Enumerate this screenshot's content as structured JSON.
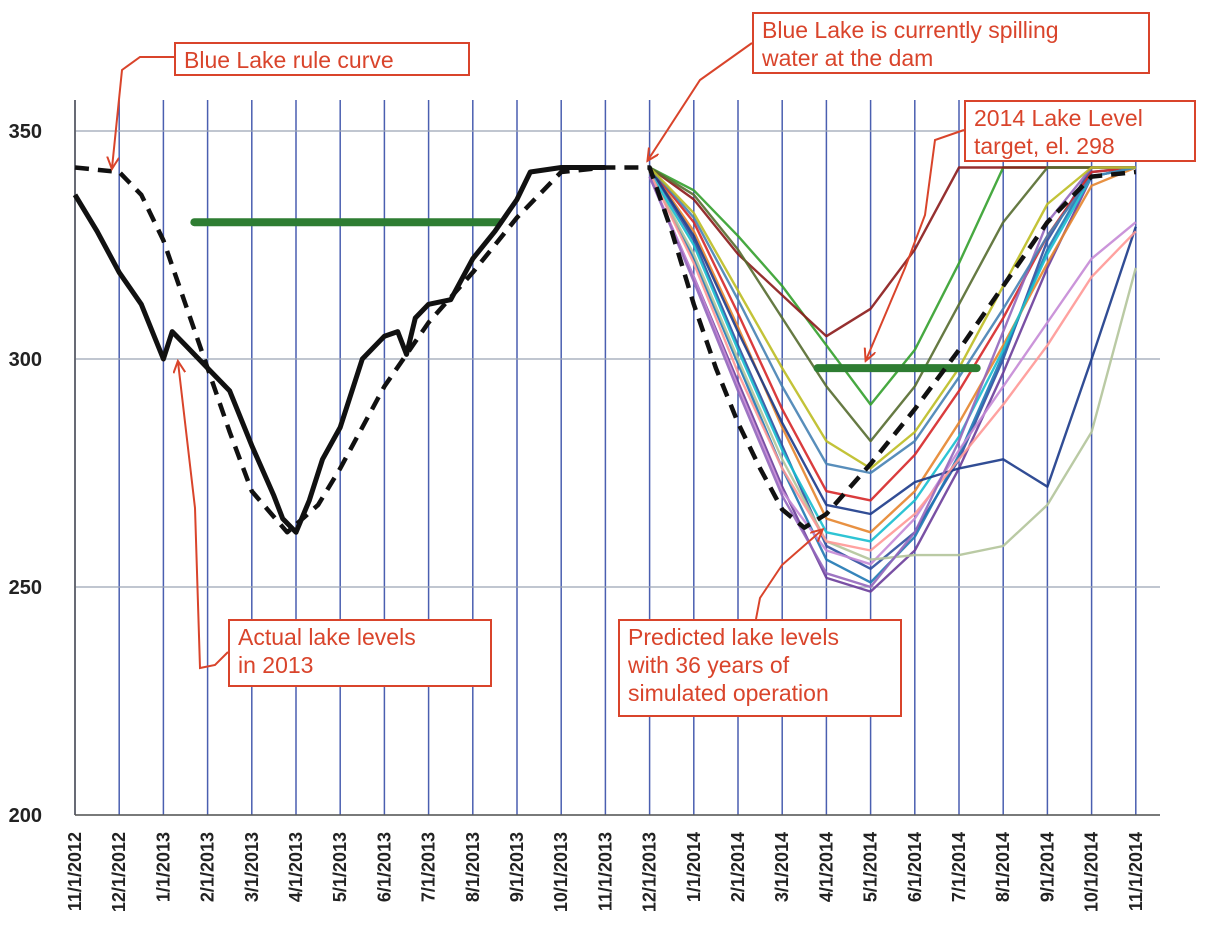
{
  "chart_data": {
    "type": "line",
    "xlabel": "",
    "ylabel": "",
    "ylim": [
      200,
      355
    ],
    "yticks": [
      200,
      250,
      300,
      350
    ],
    "x_ticks": [
      "11/1/2012",
      "12/1/2012",
      "1/1/2013",
      "2/1/2013",
      "3/1/2013",
      "4/1/2013",
      "5/1/2013",
      "6/1/2013",
      "7/1/2013",
      "8/1/2013",
      "9/1/2013",
      "10/1/2013",
      "11/1/2013",
      "12/1/2013",
      "1/1/2014",
      "2/1/2014",
      "3/1/2014",
      "4/1/2014",
      "5/1/2014",
      "6/1/2014",
      "7/1/2014",
      "8/1/2014",
      "9/1/2014",
      "10/1/2014",
      "11/1/2014"
    ],
    "grid": true,
    "rule_curve": {
      "color": "#111111",
      "style": "dashed",
      "points": [
        [
          0,
          342
        ],
        [
          1,
          341
        ],
        [
          1.5,
          336
        ],
        [
          2,
          326
        ],
        [
          2.5,
          312
        ],
        [
          3,
          298
        ],
        [
          3.5,
          284
        ],
        [
          4,
          271
        ],
        [
          4.8,
          262
        ],
        [
          5.5,
          268
        ],
        [
          6,
          276
        ],
        [
          7,
          294
        ],
        [
          8,
          308
        ],
        [
          9,
          319
        ],
        [
          10,
          331
        ],
        [
          11,
          341
        ],
        [
          12,
          342
        ],
        [
          13,
          342
        ],
        [
          13.5,
          328
        ],
        [
          14,
          312
        ],
        [
          14.5,
          298
        ],
        [
          15,
          286
        ],
        [
          15.5,
          276
        ],
        [
          16,
          267
        ],
        [
          16.5,
          263
        ],
        [
          17,
          266
        ],
        [
          18,
          277
        ],
        [
          19,
          289
        ],
        [
          20,
          302
        ],
        [
          21,
          316
        ],
        [
          22,
          330
        ],
        [
          23,
          340
        ],
        [
          24,
          341
        ]
      ]
    },
    "actual_2013": {
      "color": "#111111",
      "points": [
        [
          0,
          336
        ],
        [
          0.5,
          328
        ],
        [
          1,
          319
        ],
        [
          1.5,
          312
        ],
        [
          2,
          300
        ],
        [
          2.2,
          306
        ],
        [
          2.5,
          303
        ],
        [
          3,
          298
        ],
        [
          3.5,
          293
        ],
        [
          4,
          281
        ],
        [
          4.5,
          270
        ],
        [
          4.7,
          265
        ],
        [
          5,
          262
        ],
        [
          5.3,
          269
        ],
        [
          5.6,
          278
        ],
        [
          6,
          285
        ],
        [
          6.5,
          300
        ],
        [
          7,
          305
        ],
        [
          7.3,
          306
        ],
        [
          7.5,
          301
        ],
        [
          7.7,
          309
        ],
        [
          8,
          312
        ],
        [
          8.5,
          313
        ],
        [
          9,
          322
        ],
        [
          9.5,
          328
        ],
        [
          10,
          335
        ],
        [
          10.3,
          341
        ],
        [
          11,
          342
        ],
        [
          12,
          342
        ]
      ]
    },
    "green_targets": [
      {
        "color": "#2e7d32",
        "x": [
          2.7,
          9.6
        ],
        "y": 330
      },
      {
        "color": "#2e7d32",
        "x": [
          16.8,
          20.4
        ],
        "y": 298
      }
    ],
    "simulation_summary": {
      "count": 36,
      "x_start": 12,
      "start_y": 342
    },
    "simulations": [
      {
        "color": "#2f4fa0",
        "points": [
          [
            13,
            342
          ],
          [
            14,
            326
          ],
          [
            15,
            303
          ],
          [
            16,
            281
          ],
          [
            17,
            259
          ],
          [
            18,
            254
          ],
          [
            19,
            262
          ],
          [
            20,
            278
          ],
          [
            21,
            300
          ],
          [
            22,
            326
          ],
          [
            23,
            342
          ],
          [
            24,
            342
          ]
        ]
      },
      {
        "color": "#6a3d9a",
        "points": [
          [
            13,
            340
          ],
          [
            14,
            318
          ],
          [
            15,
            295
          ],
          [
            16,
            272
          ],
          [
            17,
            252
          ],
          [
            18,
            249
          ],
          [
            19,
            258
          ],
          [
            20,
            276
          ],
          [
            21,
            297
          ],
          [
            22,
            320
          ],
          [
            23,
            340
          ],
          [
            24,
            342
          ]
        ]
      },
      {
        "color": "#1f78b4",
        "points": [
          [
            13,
            341
          ],
          [
            14,
            322
          ],
          [
            15,
            299
          ],
          [
            16,
            276
          ],
          [
            17,
            256
          ],
          [
            18,
            251
          ],
          [
            19,
            261
          ],
          [
            20,
            279
          ],
          [
            21,
            301
          ],
          [
            22,
            324
          ],
          [
            23,
            341
          ],
          [
            24,
            342
          ]
        ]
      },
      {
        "color": "#33a02c",
        "points": [
          [
            13,
            342
          ],
          [
            14,
            337
          ],
          [
            15,
            327
          ],
          [
            16,
            316
          ],
          [
            17,
            303
          ],
          [
            18,
            290
          ],
          [
            19,
            302
          ],
          [
            20,
            321
          ],
          [
            21,
            342
          ],
          [
            22,
            342
          ],
          [
            23,
            342
          ],
          [
            24,
            342
          ]
        ]
      },
      {
        "color": "#8b1a1a",
        "points": [
          [
            13,
            342
          ],
          [
            14,
            335
          ],
          [
            15,
            323
          ],
          [
            16,
            314
          ],
          [
            17,
            305
          ],
          [
            18,
            311
          ],
          [
            19,
            324
          ],
          [
            20,
            342
          ],
          [
            21,
            342
          ],
          [
            22,
            342
          ],
          [
            23,
            342
          ],
          [
            24,
            342
          ]
        ]
      },
      {
        "color": "#e6852e",
        "points": [
          [
            13,
            342
          ],
          [
            14,
            328
          ],
          [
            15,
            307
          ],
          [
            16,
            285
          ],
          [
            17,
            265
          ],
          [
            18,
            262
          ],
          [
            19,
            271
          ],
          [
            20,
            286
          ],
          [
            21,
            303
          ],
          [
            22,
            321
          ],
          [
            23,
            338
          ],
          [
            24,
            342
          ]
        ]
      },
      {
        "color": "#c58ad6",
        "points": [
          [
            13,
            340
          ],
          [
            14,
            318
          ],
          [
            15,
            294
          ],
          [
            16,
            271
          ],
          [
            17,
            258
          ],
          [
            18,
            255
          ],
          [
            19,
            265
          ],
          [
            20,
            280
          ],
          [
            21,
            294
          ],
          [
            22,
            308
          ],
          [
            23,
            322
          ],
          [
            24,
            330
          ]
        ]
      },
      {
        "color": "#b2c49a",
        "points": [
          [
            13,
            341
          ],
          [
            14,
            323
          ],
          [
            15,
            300
          ],
          [
            16,
            278
          ],
          [
            17,
            260
          ],
          [
            18,
            256
          ],
          [
            19,
            257
          ],
          [
            20,
            257
          ],
          [
            21,
            259
          ],
          [
            22,
            268
          ],
          [
            23,
            284
          ],
          [
            24,
            320
          ]
        ]
      },
      {
        "color": "#d62728",
        "points": [
          [
            13,
            342
          ],
          [
            14,
            330
          ],
          [
            15,
            310
          ],
          [
            16,
            289
          ],
          [
            17,
            271
          ],
          [
            18,
            269
          ],
          [
            19,
            279
          ],
          [
            20,
            293
          ],
          [
            21,
            309
          ],
          [
            22,
            327
          ],
          [
            23,
            341
          ],
          [
            24,
            342
          ]
        ]
      },
      {
        "color": "#17becf",
        "points": [
          [
            13,
            341
          ],
          [
            14,
            325
          ],
          [
            15,
            302
          ],
          [
            16,
            280
          ],
          [
            17,
            262
          ],
          [
            18,
            260
          ],
          [
            19,
            269
          ],
          [
            20,
            283
          ],
          [
            21,
            302
          ],
          [
            22,
            323
          ],
          [
            23,
            340
          ],
          [
            24,
            342
          ]
        ]
      },
      {
        "color": "#556b2f",
        "points": [
          [
            13,
            342
          ],
          [
            14,
            336
          ],
          [
            15,
            324
          ],
          [
            16,
            309
          ],
          [
            17,
            294
          ],
          [
            18,
            282
          ],
          [
            19,
            294
          ],
          [
            20,
            312
          ],
          [
            21,
            330
          ],
          [
            22,
            342
          ],
          [
            23,
            342
          ],
          [
            24,
            342
          ]
        ]
      },
      {
        "color": "#1b3a8a",
        "points": [
          [
            13,
            342
          ],
          [
            14,
            327
          ],
          [
            15,
            306
          ],
          [
            16,
            286
          ],
          [
            17,
            268
          ],
          [
            18,
            266
          ],
          [
            19,
            273
          ],
          [
            20,
            276
          ],
          [
            21,
            278
          ],
          [
            22,
            272
          ],
          [
            23,
            300
          ],
          [
            24,
            329
          ]
        ]
      },
      {
        "color": "#ff9896",
        "points": [
          [
            13,
            341
          ],
          [
            14,
            321
          ],
          [
            15,
            297
          ],
          [
            16,
            276
          ],
          [
            17,
            260
          ],
          [
            18,
            258
          ],
          [
            19,
            266
          ],
          [
            20,
            278
          ],
          [
            21,
            290
          ],
          [
            22,
            303
          ],
          [
            23,
            318
          ],
          [
            24,
            328
          ]
        ]
      },
      {
        "color": "#9467bd",
        "points": [
          [
            13,
            340
          ],
          [
            14,
            317
          ],
          [
            15,
            293
          ],
          [
            16,
            270
          ],
          [
            17,
            253
          ],
          [
            18,
            250
          ],
          [
            19,
            262
          ],
          [
            20,
            282
          ],
          [
            21,
            306
          ],
          [
            22,
            330
          ],
          [
            23,
            342
          ],
          [
            24,
            342
          ]
        ]
      },
      {
        "color": "#4682b4",
        "points": [
          [
            13,
            342
          ],
          [
            14,
            331
          ],
          [
            15,
            313
          ],
          [
            16,
            294
          ],
          [
            17,
            277
          ],
          [
            18,
            275
          ],
          [
            19,
            282
          ],
          [
            20,
            296
          ],
          [
            21,
            311
          ],
          [
            22,
            327
          ],
          [
            23,
            340
          ],
          [
            24,
            342
          ]
        ]
      },
      {
        "color": "#bcbd22",
        "points": [
          [
            13,
            342
          ],
          [
            14,
            332
          ],
          [
            15,
            315
          ],
          [
            16,
            298
          ],
          [
            17,
            282
          ],
          [
            18,
            276
          ],
          [
            19,
            284
          ],
          [
            20,
            298
          ],
          [
            21,
            316
          ],
          [
            22,
            334
          ],
          [
            23,
            342
          ],
          [
            24,
            342
          ]
        ]
      }
    ],
    "annotations": [
      {
        "text": "Blue Lake rule curve"
      },
      {
        "text": "Blue Lake is currently spilling\nwater at the dam"
      },
      {
        "text": "2014 Lake Level\ntarget, el. 298"
      },
      {
        "text": "Actual lake levels\nin 2013"
      },
      {
        "text": "Predicted lake levels\nwith 36 years of\nsimulated operation"
      }
    ]
  },
  "colors": {
    "annotation": "#d9442b",
    "grid_vertical": "#4a5fb0",
    "grid_horizontal": "#9aa3b5",
    "target": "#2e7d32"
  }
}
